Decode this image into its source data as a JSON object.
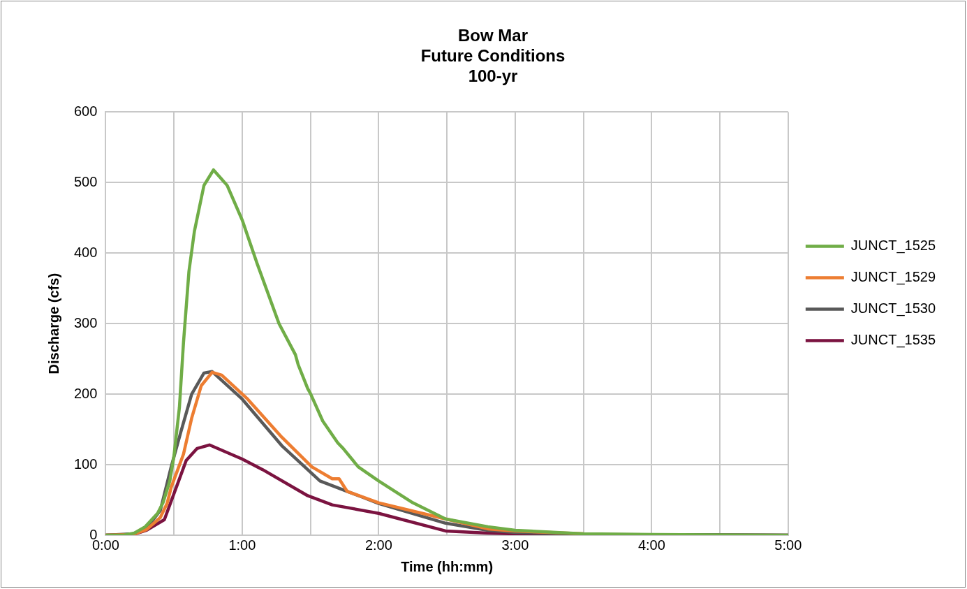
{
  "chart_data": {
    "type": "line",
    "title": [
      "Bow Mar",
      "Future Conditions",
      "100-yr"
    ],
    "xlabel": "Time (hh:mm)",
    "ylabel": "Discharge (cfs)",
    "xlim": [
      0,
      5
    ],
    "xticks": [
      {
        "value": 0,
        "label": "0:00"
      },
      {
        "value": 0.5,
        "label": null
      },
      {
        "value": 1,
        "label": "1:00"
      },
      {
        "value": 1.5,
        "label": null
      },
      {
        "value": 2,
        "label": "2:00"
      },
      {
        "value": 2.5,
        "label": null
      },
      {
        "value": 3,
        "label": "3:00"
      },
      {
        "value": 3.5,
        "label": null
      },
      {
        "value": 4,
        "label": "4:00"
      },
      {
        "value": 4.5,
        "label": null
      },
      {
        "value": 5,
        "label": "5:00"
      }
    ],
    "ylim": [
      0,
      600
    ],
    "yticks": [
      0,
      100,
      200,
      300,
      400,
      500,
      600
    ],
    "grid": true,
    "legend": "right",
    "marker": "none",
    "line_style": "solid",
    "series": [
      {
        "name": "JUNCT_1525",
        "color": "#70ad47",
        "x": [
          0,
          0.13,
          0.21,
          0.29,
          0.38,
          0.42,
          0.47,
          0.5,
          0.54,
          0.57,
          0.61,
          0.65,
          0.72,
          0.79,
          0.89,
          1.0,
          1.11,
          1.27,
          1.39,
          1.41,
          1.48,
          1.5,
          1.59,
          1.7,
          1.74,
          1.85,
          2.0,
          2.25,
          2.49,
          2.8,
          3.0,
          3.5,
          4.0,
          5.0
        ],
        "values": [
          0,
          0,
          3,
          12,
          31,
          46,
          77,
          112,
          181,
          273,
          374,
          431,
          496,
          518,
          496,
          447,
          385,
          300,
          256,
          242,
          208,
          201,
          162,
          131,
          123,
          97,
          77,
          46,
          23,
          12,
          7,
          2,
          1,
          0
        ]
      },
      {
        "name": "JUNCT_1529",
        "color": "#ed7d31",
        "x": [
          0,
          0.2,
          0.3,
          0.4,
          0.45,
          0.48,
          0.57,
          0.63,
          0.7,
          0.78,
          0.85,
          1.04,
          1.29,
          1.51,
          1.66,
          1.71,
          1.77,
          2.0,
          2.49,
          2.8,
          3.0,
          3.5
        ],
        "values": [
          0,
          1,
          8,
          25,
          45,
          68,
          115,
          166,
          212,
          231,
          227,
          193,
          139,
          97,
          80,
          80,
          62,
          46,
          23,
          9,
          6,
          2
        ]
      },
      {
        "name": "JUNCT_1530",
        "color": "#595959",
        "x": [
          0,
          0.2,
          0.3,
          0.4,
          0.48,
          0.55,
          0.63,
          0.72,
          0.78,
          1.0,
          1.29,
          1.57,
          1.77,
          1.88,
          2.0,
          2.49,
          2.8,
          3.0,
          3.5,
          5.0
        ],
        "values": [
          0,
          2,
          10,
          35,
          97,
          146,
          200,
          230,
          232,
          193,
          127,
          77,
          62,
          54,
          45,
          17,
          7,
          4,
          1,
          0
        ]
      },
      {
        "name": "JUNCT_1535",
        "color": "#7b1340",
        "x": [
          0,
          0.2,
          0.3,
          0.43,
          0.59,
          0.67,
          0.76,
          1.0,
          1.15,
          1.48,
          1.66,
          2.0,
          2.49,
          2.8,
          3.0,
          3.5,
          5.0
        ],
        "values": [
          0,
          1,
          7,
          22,
          106,
          123,
          128,
          108,
          93,
          56,
          43,
          31,
          6,
          3,
          2,
          1,
          0
        ]
      }
    ]
  }
}
